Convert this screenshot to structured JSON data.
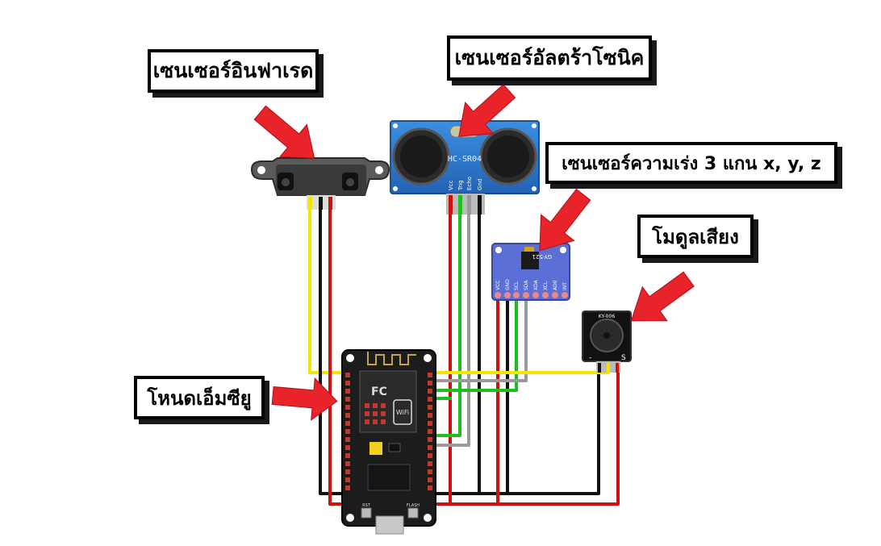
{
  "labels": {
    "ir_sensor": "เซนเซอร์อินฟาเรด",
    "ultrasonic_sensor": "เซนเซอร์อัลตร้าโซนิค",
    "accelerometer": "เซนเซอร์ความเร่ง 3 แกน x, y, z",
    "sound_module": "โมดูลเสียง",
    "nodemcu": "โหนดเอ็มซียู"
  },
  "module_text": {
    "hcsr04": "HC-SR04",
    "hcsr04_pins": [
      "Vcc",
      "Trig",
      "Echo",
      "Gnd"
    ],
    "gy521": "GY-521",
    "gy521_pins": [
      "VCC",
      "GND",
      "SCL",
      "SDA",
      "XDA",
      "XCL",
      "AD0",
      "INT"
    ],
    "ky006": "KY-006",
    "wifi": "WiFi",
    "fc": "FC",
    "rst": "RST",
    "flash": "FLASH"
  },
  "colors": {
    "arrow": "#e8232a",
    "wire_red": "#cc1111",
    "wire_black": "#111111",
    "wire_yellow": "#f2e600",
    "wire_green": "#1fbf1f",
    "wire_gray": "#9a9a9a",
    "board_black": "#1c1c1c",
    "sensor_blue": "#2f7fd0",
    "imu_blue": "#5b6fd6"
  }
}
